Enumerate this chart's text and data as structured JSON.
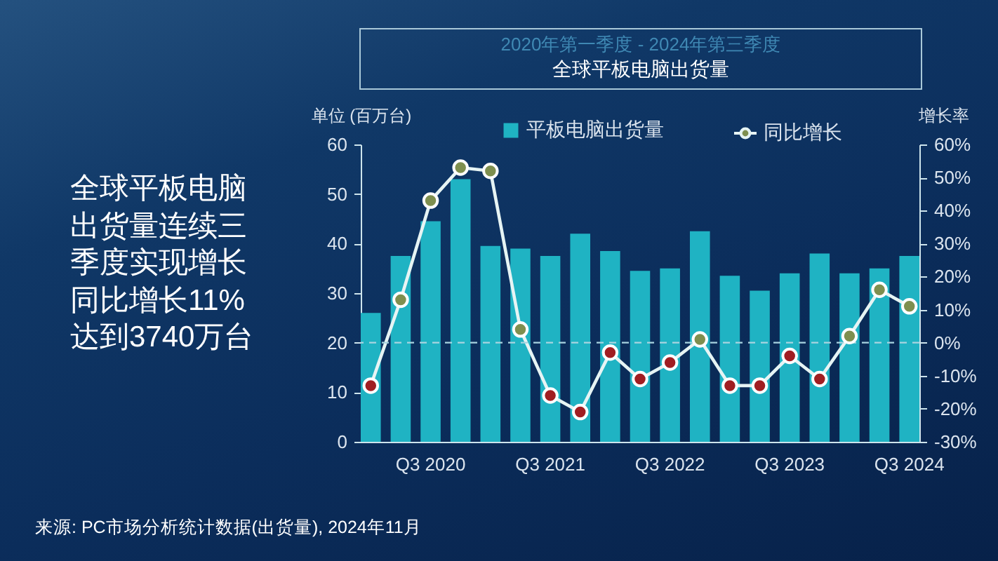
{
  "chart_data": {
    "type": "bar",
    "title": "全球平板电脑出货量",
    "subtitle": "2020年第一季度 - 2024年第三季度",
    "ylabel": "单位 (百万台)",
    "y2label": "增长率",
    "categories": [
      null,
      null,
      "Q3 2020",
      null,
      null,
      null,
      "Q3 2021",
      null,
      null,
      null,
      "Q3 2022",
      null,
      null,
      null,
      "Q3 2023",
      null,
      null,
      null,
      "Q3 2024"
    ],
    "series": [
      {
        "name": "平板电脑出货量",
        "type": "bar",
        "color": "#1fb3c3",
        "values": [
          26,
          37.5,
          44.5,
          53,
          39.5,
          39,
          37.5,
          42,
          38.5,
          34.5,
          35,
          42.5,
          33.5,
          30.5,
          34,
          38,
          34,
          35,
          37.5
        ]
      },
      {
        "name": "同比增长",
        "type": "line",
        "axis": "y2",
        "color": "#e6f4f4",
        "colors": [
          "#a01e22",
          "#7e8f4f",
          "#7e8f4f",
          "#7e8f4f",
          "#7e8f4f",
          "#7e8f4f",
          "#a01e22",
          "#a01e22",
          "#a01e22",
          "#a01e22",
          "#a01e22",
          "#7e8f4f",
          "#a01e22",
          "#a01e22",
          "#a01e22",
          "#a01e22",
          "#7e8f4f",
          "#7e8f4f",
          "#7e8f4f"
        ],
        "values": [
          -13,
          13,
          43,
          53,
          52,
          4,
          -16,
          -21,
          -3,
          -11,
          -6,
          1,
          -13,
          -13,
          -4,
          -11,
          2,
          16,
          11
        ]
      }
    ],
    "ylim": [
      0,
      60
    ],
    "yticks": [
      0,
      10,
      20,
      30,
      40,
      50,
      60
    ],
    "y2lim": [
      -30,
      60
    ],
    "y2ticks": [
      {
        "value": -30,
        "label": "-30%"
      },
      {
        "value": -20,
        "label": "-20%"
      },
      {
        "value": -10,
        "label": "-10%"
      },
      {
        "value": 0,
        "label": "0%"
      },
      {
        "value": 10,
        "label": "10%"
      },
      {
        "value": 20,
        "label": "20%"
      },
      {
        "value": 30,
        "label": "30%"
      },
      {
        "value": 40,
        "label": "40%"
      },
      {
        "value": 50,
        "label": "50%"
      },
      {
        "value": 60,
        "label": "60%"
      }
    ],
    "ref_lines": [
      {
        "axis": "y2",
        "value": 0,
        "color": "#a9d4e0",
        "line_style": "dashed"
      }
    ],
    "legend": "top",
    "marker": "circle",
    "line_style": "solid",
    "annotations": [
      "全球平板电脑出货量连续三季度实现增长同比增长11%达到3740万台",
      "来源: PC市场分析统计数据(出货量), 2024年11月"
    ]
  }
}
